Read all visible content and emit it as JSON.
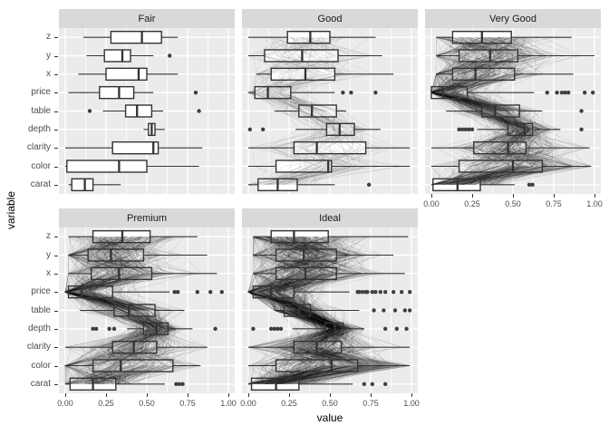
{
  "figure": {
    "xlabel": "value",
    "ylabel": "variable",
    "x_tick_labels": [
      "0.00",
      "0.25",
      "0.50",
      "0.75",
      "1.00"
    ],
    "x_tick_values": [
      0,
      0.25,
      0.5,
      0.75,
      1
    ]
  },
  "style": {
    "strip_bg": "#d9d9d9",
    "strip_text": "#1a1a1a",
    "panel_bg": "#ebebeb",
    "grid": "#ffffff",
    "box_stroke": "#333333",
    "box_fill": "#ffffff",
    "outlier_fill": "#3e3e3e",
    "tick_label": "#4d4d4d",
    "axis_title": "#000000"
  },
  "chart_data": {
    "type": "bar",
    "subtype": "horizontal-boxplot-facets",
    "facet_variable": "cut",
    "x_range": [
      0,
      1
    ],
    "categories": [
      "z",
      "y",
      "x",
      "price",
      "table",
      "depth",
      "clarity",
      "color",
      "carat"
    ],
    "facets": [
      {
        "label": "Fair",
        "row": 0,
        "col": 0,
        "show_y_axis": true,
        "show_x_axis": false,
        "overlay_lines": {
          "count": 0,
          "alpha": 0
        },
        "boxes": [
          {
            "variable": "z",
            "stats": [
              0.11,
              0.28,
              0.47,
              0.59,
              0.69
            ],
            "outliers": []
          },
          {
            "variable": "y",
            "stats": [
              0.13,
              0.24,
              0.35,
              0.4,
              0.54
            ],
            "outliers": [
              0.64
            ]
          },
          {
            "variable": "x",
            "stats": [
              0.08,
              0.25,
              0.45,
              0.5,
              0.69
            ],
            "outliers": []
          },
          {
            "variable": "price",
            "stats": [
              0.02,
              0.21,
              0.33,
              0.42,
              0.54
            ],
            "outliers": [
              0.8
            ]
          },
          {
            "variable": "table",
            "stats": [
              0.23,
              0.37,
              0.44,
              0.53,
              0.6
            ],
            "outliers": [
              0.15,
              0.82
            ]
          },
          {
            "variable": "depth",
            "stats": [
              0.48,
              0.51,
              0.53,
              0.55,
              0.61
            ],
            "outliers": []
          },
          {
            "variable": "clarity",
            "stats": [
              0.0,
              0.29,
              0.54,
              0.57,
              0.84
            ],
            "outliers": []
          },
          {
            "variable": "color",
            "stats": [
              0.0,
              0.01,
              0.33,
              0.5,
              0.82
            ],
            "outliers": []
          },
          {
            "variable": "carat",
            "stats": [
              0.02,
              0.04,
              0.12,
              0.17,
              0.34
            ],
            "outliers": []
          }
        ]
      },
      {
        "label": "Good",
        "row": 0,
        "col": 1,
        "show_y_axis": false,
        "show_x_axis": false,
        "overlay_lines": {
          "count": 75,
          "alpha": 0.08
        },
        "boxes": [
          {
            "variable": "z",
            "stats": [
              0.0,
              0.24,
              0.38,
              0.5,
              0.78
            ],
            "outliers": []
          },
          {
            "variable": "y",
            "stats": [
              0.0,
              0.1,
              0.33,
              0.55,
              0.82
            ],
            "outliers": []
          },
          {
            "variable": "x",
            "stats": [
              0.05,
              0.14,
              0.35,
              0.53,
              0.89
            ],
            "outliers": []
          },
          {
            "variable": "price",
            "stats": [
              0.0,
              0.04,
              0.12,
              0.26,
              0.53
            ],
            "outliers": [
              0.58,
              0.63,
              0.78
            ]
          },
          {
            "variable": "table",
            "stats": [
              0.16,
              0.31,
              0.39,
              0.54,
              0.6
            ],
            "outliers": []
          },
          {
            "variable": "depth",
            "stats": [
              0.29,
              0.48,
              0.56,
              0.65,
              0.81
            ],
            "outliers": [
              0.01,
              0.09
            ]
          },
          {
            "variable": "clarity",
            "stats": [
              0.0,
              0.28,
              0.42,
              0.72,
              0.99
            ],
            "outliers": []
          },
          {
            "variable": "color",
            "stats": [
              0.0,
              0.17,
              0.49,
              0.51,
              0.99
            ],
            "outliers": []
          },
          {
            "variable": "carat",
            "stats": [
              0.0,
              0.06,
              0.18,
              0.3,
              0.53
            ],
            "outliers": [
              0.74
            ]
          }
        ]
      },
      {
        "label": "Very Good",
        "row": 0,
        "col": 2,
        "show_y_axis": false,
        "show_x_axis": true,
        "overlay_lines": {
          "count": 280,
          "alpha": 0.1
        },
        "boxes": [
          {
            "variable": "z",
            "stats": [
              0.03,
              0.13,
              0.31,
              0.49,
              0.86
            ],
            "outliers": []
          },
          {
            "variable": "y",
            "stats": [
              0.03,
              0.17,
              0.36,
              0.53,
              1.0
            ],
            "outliers": []
          },
          {
            "variable": "x",
            "stats": [
              0.03,
              0.13,
              0.27,
              0.51,
              0.87
            ],
            "outliers": []
          },
          {
            "variable": "price",
            "stats": [
              0.0,
              0.0,
              0.07,
              0.22,
              0.63
            ],
            "outliers": [
              0.71,
              0.77,
              0.8,
              0.82,
              0.84,
              0.94,
              0.99
            ]
          },
          {
            "variable": "table",
            "stats": [
              0.09,
              0.31,
              0.39,
              0.54,
              0.68
            ],
            "outliers": [
              0.92
            ]
          },
          {
            "variable": "depth",
            "stats": [
              0.28,
              0.47,
              0.57,
              0.62,
              0.79
            ],
            "outliers": [
              0.17,
              0.19,
              0.21,
              0.23,
              0.25,
              0.92
            ]
          },
          {
            "variable": "clarity",
            "stats": [
              0.0,
              0.26,
              0.47,
              0.58,
              0.97
            ],
            "outliers": []
          },
          {
            "variable": "color",
            "stats": [
              0.0,
              0.17,
              0.5,
              0.68,
              0.98
            ],
            "outliers": []
          },
          {
            "variable": "carat",
            "stats": [
              0.0,
              0.01,
              0.16,
              0.3,
              0.51
            ],
            "outliers": [
              0.6,
              0.62
            ]
          }
        ]
      },
      {
        "label": "Premium",
        "row": 1,
        "col": 0,
        "show_y_axis": true,
        "show_x_axis": true,
        "overlay_lines": {
          "count": 280,
          "alpha": 0.1
        },
        "boxes": [
          {
            "variable": "z",
            "stats": [
              0.02,
              0.17,
              0.35,
              0.52,
              0.81
            ],
            "outliers": []
          },
          {
            "variable": "y",
            "stats": [
              0.02,
              0.14,
              0.28,
              0.48,
              0.87
            ],
            "outliers": []
          },
          {
            "variable": "x",
            "stats": [
              0.02,
              0.16,
              0.33,
              0.53,
              0.93
            ],
            "outliers": []
          },
          {
            "variable": "price",
            "stats": [
              0.0,
              0.02,
              0.1,
              0.29,
              0.64
            ],
            "outliers": [
              0.67,
              0.69,
              0.81,
              0.89,
              0.96
            ]
          },
          {
            "variable": "table",
            "stats": [
              0.09,
              0.3,
              0.39,
              0.55,
              0.73
            ],
            "outliers": []
          },
          {
            "variable": "depth",
            "stats": [
              0.38,
              0.48,
              0.56,
              0.63,
              0.78
            ],
            "outliers": [
              0.17,
              0.19,
              0.27,
              0.3,
              0.92
            ]
          },
          {
            "variable": "clarity",
            "stats": [
              0.0,
              0.29,
              0.42,
              0.56,
              0.87
            ],
            "outliers": []
          },
          {
            "variable": "color",
            "stats": [
              0.0,
              0.17,
              0.34,
              0.66,
              0.83
            ],
            "outliers": []
          },
          {
            "variable": "carat",
            "stats": [
              0.0,
              0.03,
              0.17,
              0.31,
              0.61
            ],
            "outliers": [
              0.68,
              0.7,
              0.72
            ]
          }
        ]
      },
      {
        "label": "Ideal",
        "row": 1,
        "col": 1,
        "show_y_axis": false,
        "show_x_axis": true,
        "overlay_lines": {
          "count": 380,
          "alpha": 0.11
        },
        "boxes": [
          {
            "variable": "z",
            "stats": [
              0.03,
              0.14,
              0.28,
              0.49,
              0.98
            ],
            "outliers": []
          },
          {
            "variable": "y",
            "stats": [
              0.03,
              0.17,
              0.34,
              0.54,
              0.89
            ],
            "outliers": []
          },
          {
            "variable": "x",
            "stats": [
              0.03,
              0.17,
              0.35,
              0.54,
              0.96
            ],
            "outliers": []
          },
          {
            "variable": "price",
            "stats": [
              0.0,
              0.03,
              0.14,
              0.28,
              0.62
            ],
            "outliers": [
              0.67,
              0.68,
              0.7,
              0.72,
              0.73,
              0.76,
              0.78,
              0.81,
              0.84,
              0.89,
              0.94,
              0.99
            ]
          },
          {
            "variable": "table",
            "stats": [
              0.16,
              0.22,
              0.31,
              0.38,
              0.68
            ],
            "outliers": [
              0.77,
              0.83,
              0.9,
              0.96,
              0.99
            ]
          },
          {
            "variable": "depth",
            "stats": [
              0.27,
              0.47,
              0.53,
              0.58,
              0.71
            ],
            "outliers": [
              0.03,
              0.14,
              0.16,
              0.18,
              0.2,
              0.84,
              0.91,
              0.97
            ]
          },
          {
            "variable": "clarity",
            "stats": [
              0.0,
              0.28,
              0.42,
              0.57,
              0.99
            ],
            "outliers": []
          },
          {
            "variable": "color",
            "stats": [
              0.0,
              0.17,
              0.51,
              0.67,
              0.99
            ],
            "outliers": []
          },
          {
            "variable": "carat",
            "stats": [
              0.0,
              0.02,
              0.17,
              0.31,
              0.64
            ],
            "outliers": [
              0.71,
              0.76,
              0.84
            ]
          }
        ]
      }
    ]
  }
}
